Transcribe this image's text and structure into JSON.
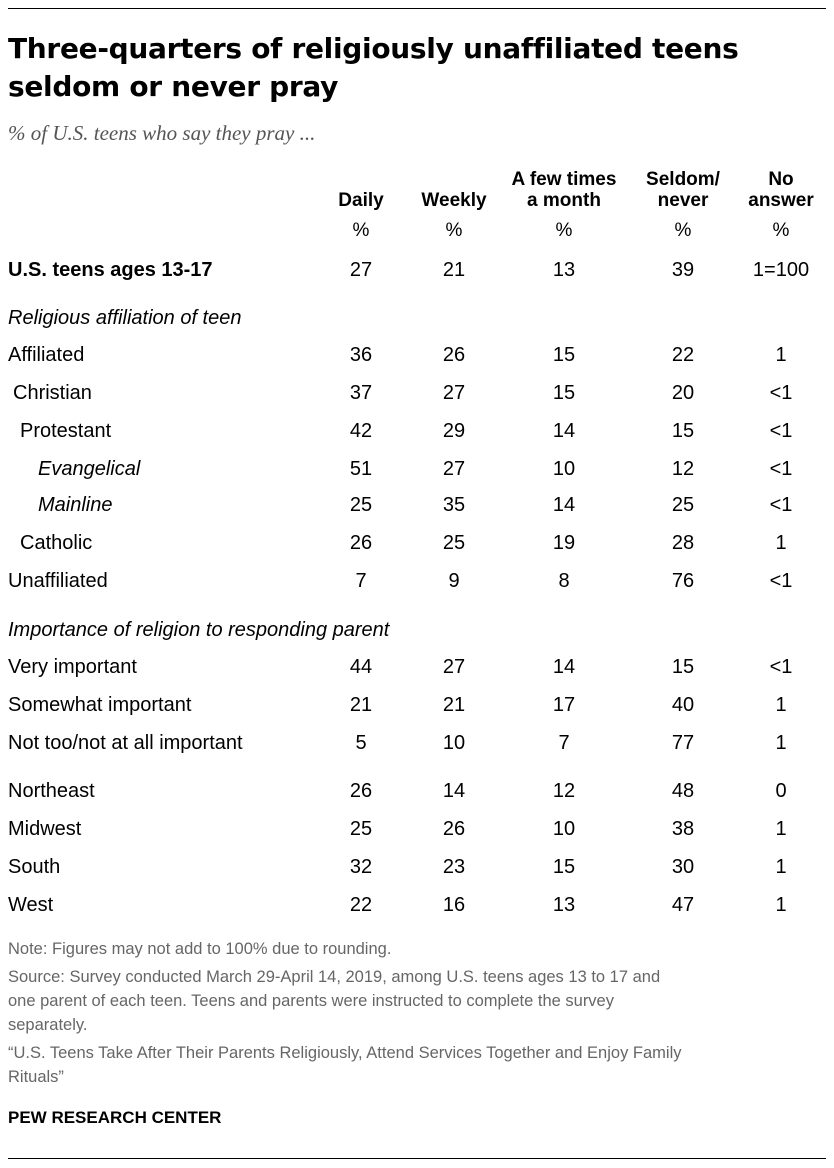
{
  "title": "Three-quarters of religiously unaffiliated teens seldom or never pray",
  "subtitle": "% of U.S. teens who say they pray ...",
  "columns": [
    {
      "lines": [
        "Daily"
      ],
      "unit": "%"
    },
    {
      "lines": [
        "Weekly"
      ],
      "unit": "%"
    },
    {
      "lines": [
        "A few times",
        "a month"
      ],
      "unit": "%"
    },
    {
      "lines": [
        "Seldom/",
        "never"
      ],
      "unit": "%"
    },
    {
      "lines": [
        "No",
        "answer"
      ],
      "unit": "%"
    }
  ],
  "sections": {
    "affiliation": "Religious affiliation of teen",
    "importance": "Importance of religion to responding parent"
  },
  "chart_data": {
    "type": "table",
    "title": "Three-quarters of religiously unaffiliated teens seldom or never pray",
    "columns": [
      "Daily",
      "Weekly",
      "A few times a month",
      "Seldom/never",
      "No answer"
    ],
    "rows": [
      {
        "label": "U.S. teens ages 13-17",
        "values": [
          "27",
          "21",
          "13",
          "39",
          "1=100"
        ]
      },
      {
        "label": "Affiliated",
        "values": [
          "36",
          "26",
          "15",
          "22",
          "1"
        ]
      },
      {
        "label": "Christian",
        "values": [
          "37",
          "27",
          "15",
          "20",
          "<1"
        ]
      },
      {
        "label": "Protestant",
        "values": [
          "42",
          "29",
          "14",
          "15",
          "<1"
        ]
      },
      {
        "label": "Evangelical",
        "values": [
          "51",
          "27",
          "10",
          "12",
          "<1"
        ]
      },
      {
        "label": "Mainline",
        "values": [
          "25",
          "35",
          "14",
          "25",
          "<1"
        ]
      },
      {
        "label": "Catholic",
        "values": [
          "26",
          "25",
          "19",
          "28",
          "1"
        ]
      },
      {
        "label": "Unaffiliated",
        "values": [
          "7",
          "9",
          "8",
          "76",
          "<1"
        ]
      },
      {
        "label": "Very important",
        "values": [
          "44",
          "27",
          "14",
          "15",
          "<1"
        ]
      },
      {
        "label": "Somewhat important",
        "values": [
          "21",
          "21",
          "17",
          "40",
          "1"
        ]
      },
      {
        "label": "Not too/not at all important",
        "values": [
          "5",
          "10",
          "7",
          "77",
          "1"
        ]
      },
      {
        "label": "Northeast",
        "values": [
          "26",
          "14",
          "12",
          "48",
          "0"
        ]
      },
      {
        "label": "Midwest",
        "values": [
          "25",
          "26",
          "10",
          "38",
          "1"
        ]
      },
      {
        "label": "South",
        "values": [
          "32",
          "23",
          "15",
          "30",
          "1"
        ]
      },
      {
        "label": "West",
        "values": [
          "22",
          "16",
          "13",
          "47",
          "1"
        ]
      }
    ]
  },
  "notes": [
    "Note: Figures may not add to 100% due to rounding.",
    "Source: Survey conducted March 29-April 14, 2019, among U.S. teens ages 13 to 17 and",
    "one parent of each teen. Teens and parents were instructed to complete the survey",
    "separately.",
    "“U.S. Teens Take After Their Parents Religiously, Attend Services Together and Enjoy Family",
    "Rituals”"
  ],
  "source_org": "PEW RESEARCH CENTER"
}
